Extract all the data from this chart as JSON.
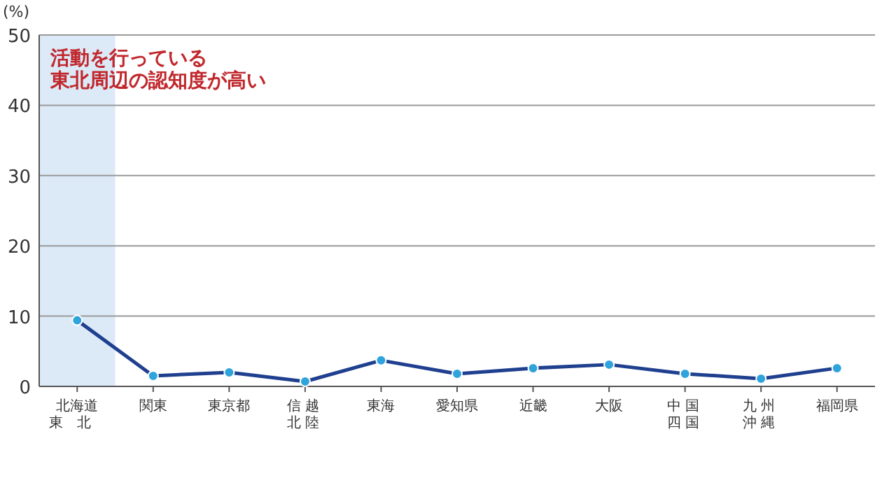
{
  "chart_data": {
    "type": "line",
    "ylabel": "(%)",
    "categories": [
      "北海道東北",
      "関東",
      "東京都",
      "信越北陸",
      "東海",
      "愛知県",
      "近畿",
      "大阪",
      "中国四国",
      "九州沖縄",
      "福岡県"
    ],
    "series": [
      {
        "color": "#1f3f8f",
        "values": [
          9.4,
          1.5,
          2.0,
          0.7,
          3.7,
          1.8,
          2.6,
          3.1,
          1.8,
          1.1,
          2.6
        ]
      }
    ],
    "marker": "circle",
    "line_style": "solid",
    "ylim": [
      0,
      50
    ],
    "yticks": [
      0,
      10,
      20,
      30,
      40,
      50
    ],
    "grid": "y",
    "bands": [
      {
        "axis": "x",
        "from": "北海道東北",
        "to": "北海道東北",
        "color": "#dceaf8"
      }
    ],
    "annotations": [
      "活動を行っている",
      "東北周辺の認知度が高い"
    ]
  }
}
